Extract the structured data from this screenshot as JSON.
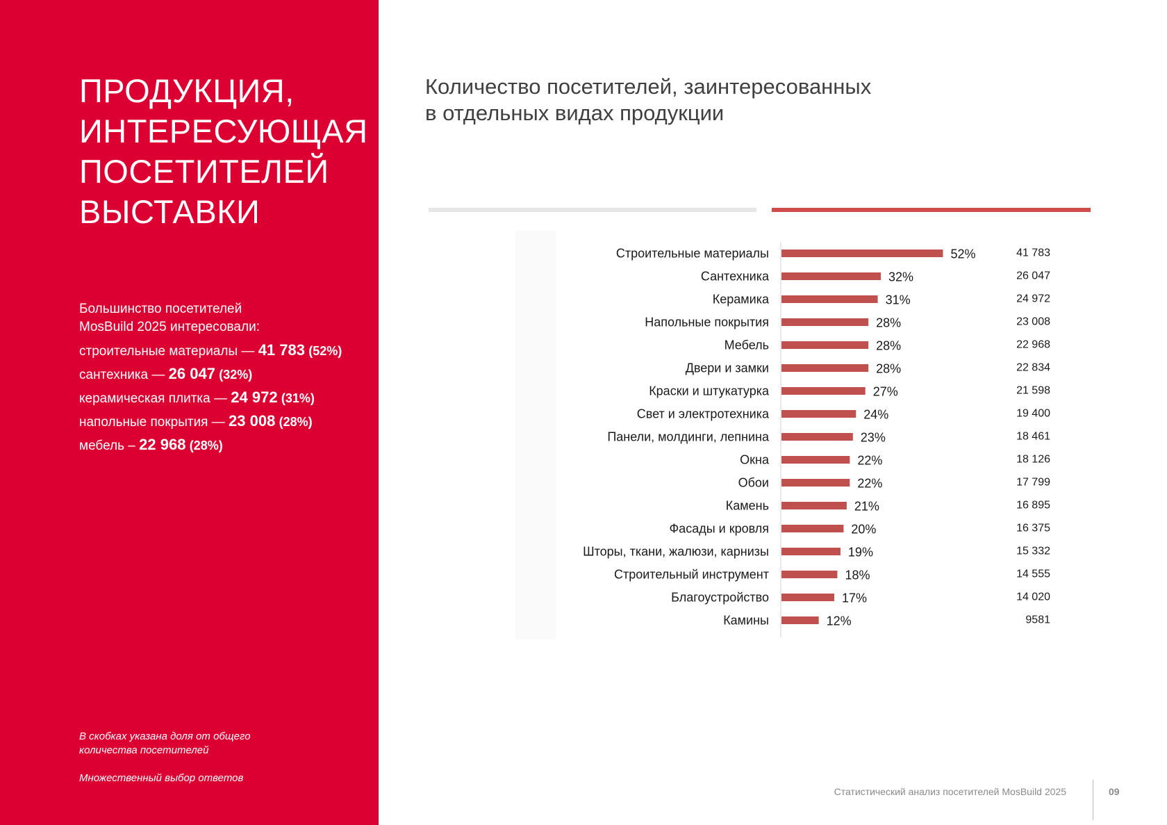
{
  "left_panel": {
    "title_lines": [
      "ПРОДУКЦИЯ,",
      "ИНТЕРЕСУЮЩАЯ",
      "ПОСЕТИТЕЛЕЙ",
      "ВЫСТАВКИ"
    ],
    "intro_lines": [
      "Большинство посетителей",
      "MosBuild 2025 интересовали:"
    ],
    "items": [
      {
        "label": "строительные материалы",
        "dash": " — ",
        "value": "41 783",
        "pct": "(52%)"
      },
      {
        "label": "сантехника",
        "dash": " — ",
        "value": "26 047",
        "pct": "(32%)"
      },
      {
        "label": "керамическая плитка",
        "dash": " — ",
        "value": "24 972",
        "pct": "(31%)"
      },
      {
        "label": "напольные покрытия",
        "dash": " — ",
        "value": "23 008",
        "pct": "(28%)"
      },
      {
        "label": "мебель",
        "dash": " – ",
        "value": "22 968",
        "pct": "(28%)"
      }
    ],
    "note_lines": [
      "В скобках указана доля от общего",
      "количества посетителей"
    ],
    "note2": "Множественный выбор ответов"
  },
  "chart_title_lines": [
    "Количество посетителей, заинтересованных",
    "в отдельных видах продукции"
  ],
  "colors": {
    "panel": "#dc0032",
    "bar": "#c0504d",
    "divider_grey": "#e6e6e6",
    "divider_red": "#d24b4b"
  },
  "chart_data": {
    "type": "bar",
    "orientation": "horizontal",
    "categories": [
      "Строительные материалы",
      "Сантехника",
      "Керамика",
      "Напольные покрытия",
      "Мебель",
      "Двери и замки",
      "Краски и штукатурка",
      "Свет и электротехника",
      "Панели, молдинги, лепнина",
      "Окна",
      "Обои",
      "Камень",
      "Фасады и кровля",
      "Шторы, ткани, жалюзи, карнизы",
      "Строительный инструмент",
      "Благоустройство",
      "Камины"
    ],
    "series": [
      {
        "values": [
          52,
          32,
          31,
          28,
          28,
          28,
          27,
          24,
          23,
          22,
          22,
          21,
          20,
          19,
          18,
          17,
          12
        ]
      }
    ],
    "value_labels": [
      "52%",
      "32%",
      "31%",
      "28%",
      "28%",
      "28%",
      "27%",
      "24%",
      "23%",
      "22%",
      "22%",
      "21%",
      "20%",
      "19%",
      "18%",
      "17%",
      "12%"
    ],
    "counts": [
      "41 783",
      "26 047",
      "24 972",
      "23 008",
      "22 968",
      "22 834",
      "21 598",
      "19 400",
      "18 461",
      "18 126",
      "17 799",
      "16 895",
      "16 375",
      "15 332",
      "14 555",
      "14 020",
      "9581"
    ],
    "xlim": [
      0,
      100
    ],
    "grid": false,
    "legend": "none"
  },
  "footer": {
    "text": "Статистический анализ посетителей MosBuild 2025",
    "page": "09"
  }
}
